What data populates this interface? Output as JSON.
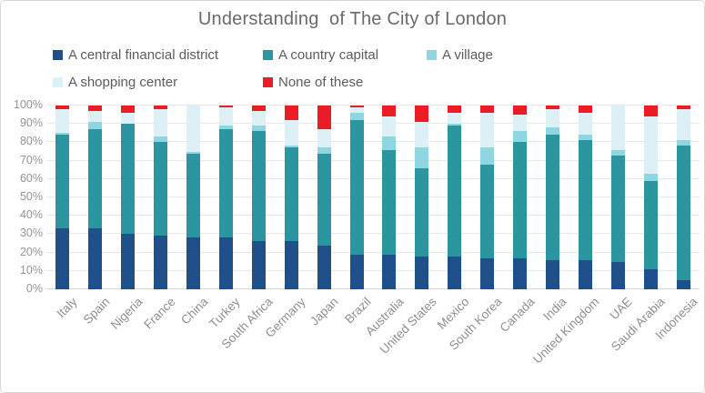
{
  "title": "Understanding  of The City of London",
  "colors": {
    "central_financial_district": "#20508a",
    "country_capital": "#2b96a0",
    "village": "#8ed7e2",
    "shopping_center": "#dcf0f5",
    "none_of_these": "#ec1c26"
  },
  "chart_data": {
    "type": "bar",
    "stacked": true,
    "title": "Understanding  of The City of London",
    "xlabel": "",
    "ylabel": "",
    "ylim": [
      0,
      100
    ],
    "grid": true,
    "legend_position": "top-left",
    "y_ticks": [
      "0%",
      "10%",
      "20%",
      "30%",
      "40%",
      "50%",
      "60%",
      "70%",
      "80%",
      "90%",
      "100%"
    ],
    "categories": [
      "Italy",
      "Spain",
      "Nigeria",
      "France",
      "China",
      "Turkey",
      "South Africa",
      "Germany",
      "Japan",
      "Brazil",
      "Australia",
      "United States",
      "Mexico",
      "South Korea",
      "Canada",
      "India",
      "United Kingdom",
      "UAE",
      "Saudi Arabia",
      "Indonesia"
    ],
    "series": [
      {
        "name": "A central financial district",
        "color_key": "central_financial_district",
        "values": [
          33,
          33,
          30,
          29,
          28,
          28,
          26,
          26,
          24,
          19,
          19,
          18,
          18,
          17,
          17,
          16,
          16,
          15,
          11,
          5
        ]
      },
      {
        "name": "A country capital",
        "color_key": "country_capital",
        "values": [
          51,
          54,
          60,
          51,
          46,
          59,
          60,
          51,
          50,
          73,
          57,
          48,
          71,
          51,
          63,
          68,
          65,
          58,
          48,
          73
        ]
      },
      {
        "name": "A village",
        "color_key": "village",
        "values": [
          1,
          4,
          0,
          3,
          1,
          2,
          3,
          1,
          3,
          4,
          7,
          11,
          1,
          9,
          6,
          4,
          3,
          3,
          4,
          3
        ]
      },
      {
        "name": "A shopping center",
        "color_key": "shopping_center",
        "values": [
          13,
          6,
          6,
          15,
          25,
          10,
          8,
          14,
          10,
          3,
          11,
          14,
          6,
          19,
          9,
          10,
          12,
          24,
          31,
          17
        ]
      },
      {
        "name": "None of these",
        "color_key": "none_of_these",
        "values": [
          2,
          3,
          4,
          2,
          0,
          1,
          3,
          8,
          13,
          1,
          6,
          9,
          4,
          4,
          5,
          2,
          4,
          0,
          6,
          2
        ]
      }
    ]
  }
}
